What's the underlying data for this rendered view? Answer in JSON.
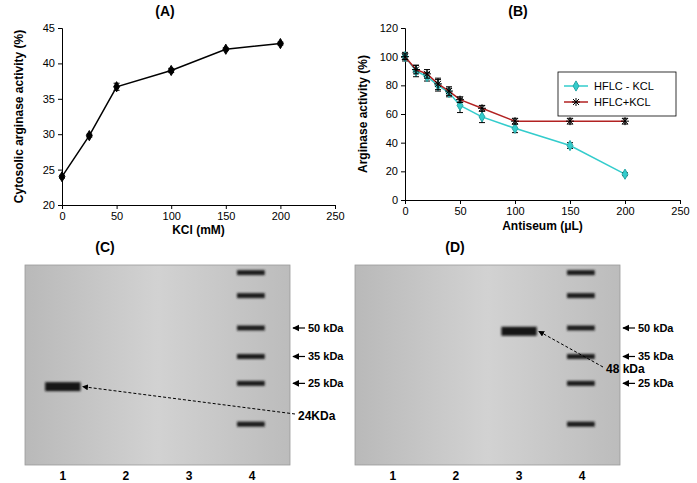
{
  "chart_data": [
    {
      "type": "line",
      "title": "(A)",
      "xlabel": "KCl (mM)",
      "ylabel": "Cytosolic arginase activity (%)",
      "x": [
        0,
        25,
        50,
        100,
        150,
        200
      ],
      "values": [
        24,
        29.8,
        36.7,
        39,
        42,
        42.8
      ],
      "errors": [
        0.2,
        0.2,
        0.5,
        0.3,
        0.2,
        0.2
      ],
      "color": "#000000",
      "marker": "diamond",
      "xlim": [
        0,
        250
      ],
      "xticks": [
        0,
        50,
        100,
        150,
        200,
        250
      ],
      "ylim": [
        20,
        45
      ],
      "yticks": [
        20,
        25,
        30,
        35,
        40,
        45
      ]
    },
    {
      "type": "line",
      "title": "(B)",
      "xlabel": "Antiseum (μL)",
      "ylabel": "Arginase activity (%)",
      "x": [
        0,
        10,
        20,
        30,
        40,
        50,
        70,
        100,
        150,
        200
      ],
      "series": [
        {
          "name": "HFLC - KCL",
          "color": "#33cccc",
          "marker": "diamond",
          "values": [
            100,
            90,
            86,
            80,
            75,
            66,
            58,
            50,
            38,
            18
          ],
          "errors": [
            3,
            4,
            3,
            4,
            3,
            5,
            4,
            3,
            2,
            1
          ]
        },
        {
          "name": "HFLC+KCL",
          "color": "#b22222",
          "marker": "asterisk",
          "values": [
            100,
            91,
            88,
            81,
            76,
            70,
            64,
            55,
            55,
            55
          ],
          "errors": [
            2,
            3,
            3,
            4,
            3,
            2,
            2,
            2,
            2,
            2
          ]
        }
      ],
      "xlim": [
        0,
        250
      ],
      "xticks": [
        0,
        50,
        100,
        150,
        200,
        250
      ],
      "ylim": [
        0,
        120
      ],
      "yticks": [
        0,
        20,
        40,
        60,
        80,
        100,
        120
      ],
      "legend": "upper right"
    },
    {
      "type": "blot",
      "title": "(C)",
      "categories": [
        "1",
        "2",
        "3",
        "4"
      ],
      "log": "y",
      "ylim": [
        110,
        9
      ],
      "yticks": [
        {
          "value": 50,
          "label": "50 kDa"
        },
        {
          "value": 35,
          "label": "35 kDa"
        },
        {
          "value": 25,
          "label": "25 kDa"
        }
      ],
      "ladder": {
        "lane": "4",
        "values": [
          100,
          75,
          50,
          35,
          25,
          15
        ]
      },
      "bands": [
        {
          "lane": "1",
          "value": 24,
          "label": "24KDa"
        }
      ]
    },
    {
      "type": "blot",
      "title": "(D)",
      "categories": [
        "1",
        "2",
        "3",
        "4"
      ],
      "log": "y",
      "ylim": [
        110,
        9
      ],
      "yticks": [
        {
          "value": 50,
          "label": "50 kDa"
        },
        {
          "value": 35,
          "label": "35 kDa"
        },
        {
          "value": 25,
          "label": "25 kDa"
        }
      ],
      "ladder": {
        "lane": "4",
        "values": [
          100,
          75,
          50,
          35,
          25,
          15
        ]
      },
      "bands": [
        {
          "lane": "3",
          "value": 48,
          "label": "48 kDa"
        }
      ]
    }
  ]
}
